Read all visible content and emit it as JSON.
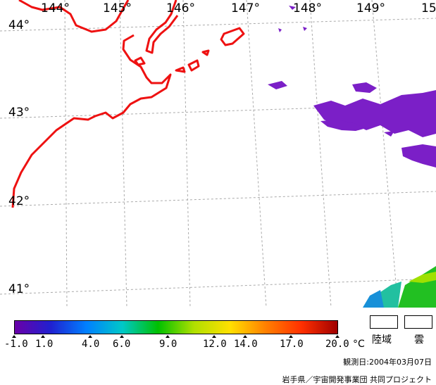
{
  "map": {
    "lon_labels": [
      "144°",
      "145°",
      "146°",
      "147°",
      "148°",
      "149°",
      "15"
    ],
    "lat_labels": [
      "44°",
      "43°",
      "42°",
      "41°"
    ],
    "colors": {
      "background": "#ffffff",
      "coastline": "#ee1111",
      "grid": "#aaaaaa",
      "cold_sst": "#7b1fc7",
      "warm_sst": "#22c022"
    }
  },
  "legend": {
    "colorbar_stops": [
      "#6a00a8",
      "#2020d0",
      "#0080ff",
      "#00c8c8",
      "#00c000",
      "#b0e000",
      "#ffe000",
      "#ff8000",
      "#ff3000",
      "#a00000"
    ],
    "ticks": [
      "-1.0",
      "1.0",
      "4.0",
      "6.0",
      "9.0",
      "12.0",
      "14.0",
      "17.0",
      "20.0"
    ],
    "unit": "°C",
    "land_label": "陸域",
    "cloud_label": "雲"
  },
  "footer": {
    "observation_date": "観測日:2004年03月07日",
    "credit": "岩手県／宇宙開発事業団 共同プロジェクト"
  }
}
